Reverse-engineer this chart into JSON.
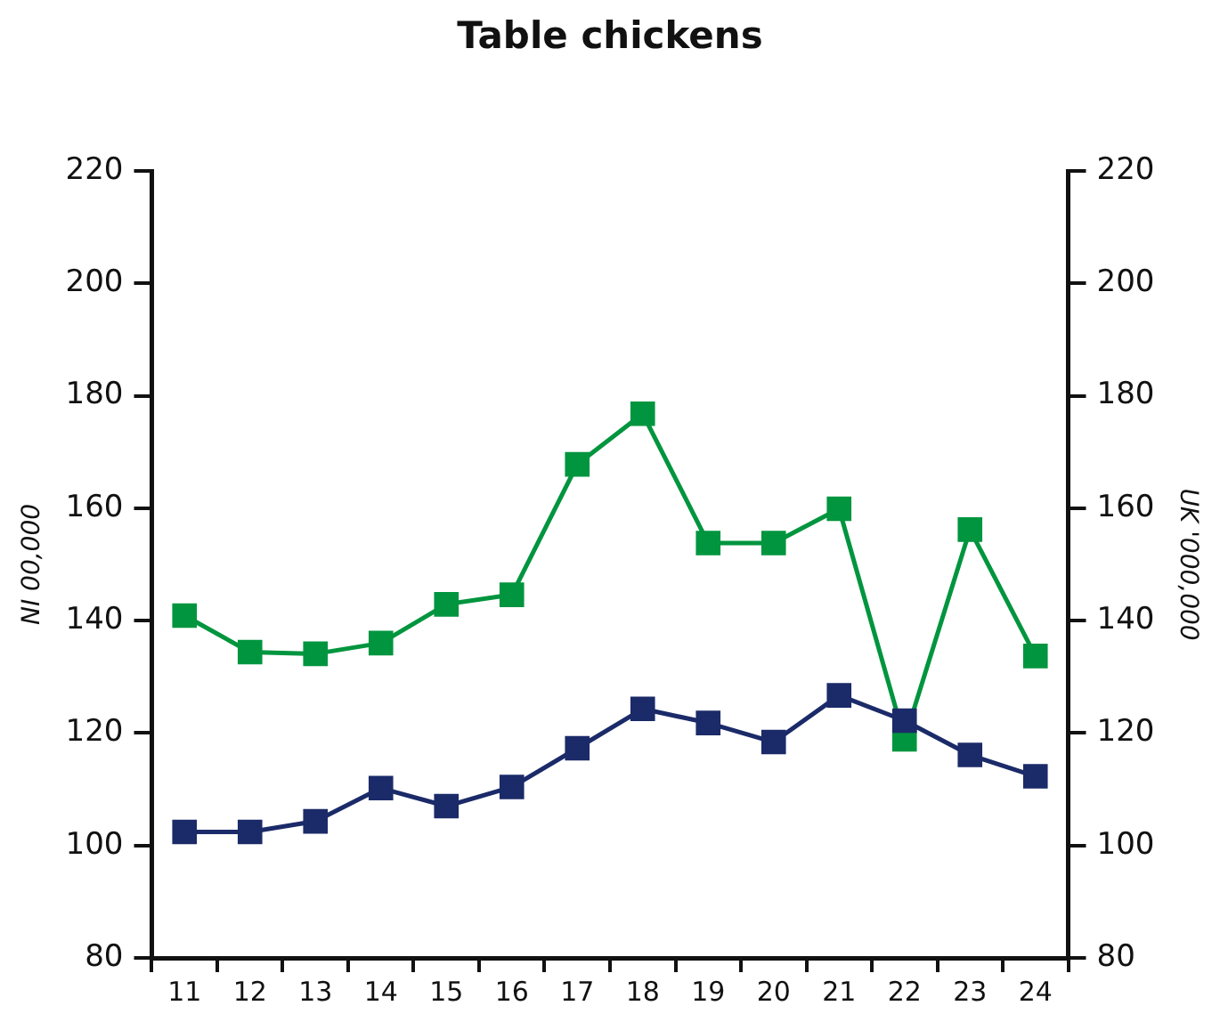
{
  "chart_data": {
    "type": "line",
    "title": "Table chickens",
    "ylabel": "NI 00,000",
    "y2label": "UK '000,000",
    "categories": [
      "11",
      "12",
      "13",
      "14",
      "15",
      "16",
      "17",
      "18",
      "19",
      "20",
      "21",
      "22",
      "23",
      "24"
    ],
    "series": [
      {
        "color": "#00953e",
        "values": [
          140.9,
          134.4,
          134.1,
          136,
          142.9,
          144.6,
          167.8,
          176.8,
          153.8,
          153.8,
          159.9,
          118.9,
          156.2,
          133.7
        ]
      },
      {
        "color": "#1b2a68",
        "values": [
          102.4,
          102.4,
          104.3,
          110.2,
          107,
          110.4,
          117.3,
          124.3,
          121.8,
          118.4,
          126.7,
          122.2,
          116.1,
          112.3
        ]
      }
    ],
    "ylim": [
      80,
      220
    ],
    "yticks": [
      80,
      100,
      120,
      140,
      160,
      180,
      200,
      220
    ],
    "y2lim": [
      80,
      220
    ],
    "y2ticks": [
      80,
      100,
      120,
      140,
      160,
      180,
      200,
      220
    ],
    "grid": false,
    "legend": false,
    "marker": "square",
    "line_style": "solid"
  }
}
